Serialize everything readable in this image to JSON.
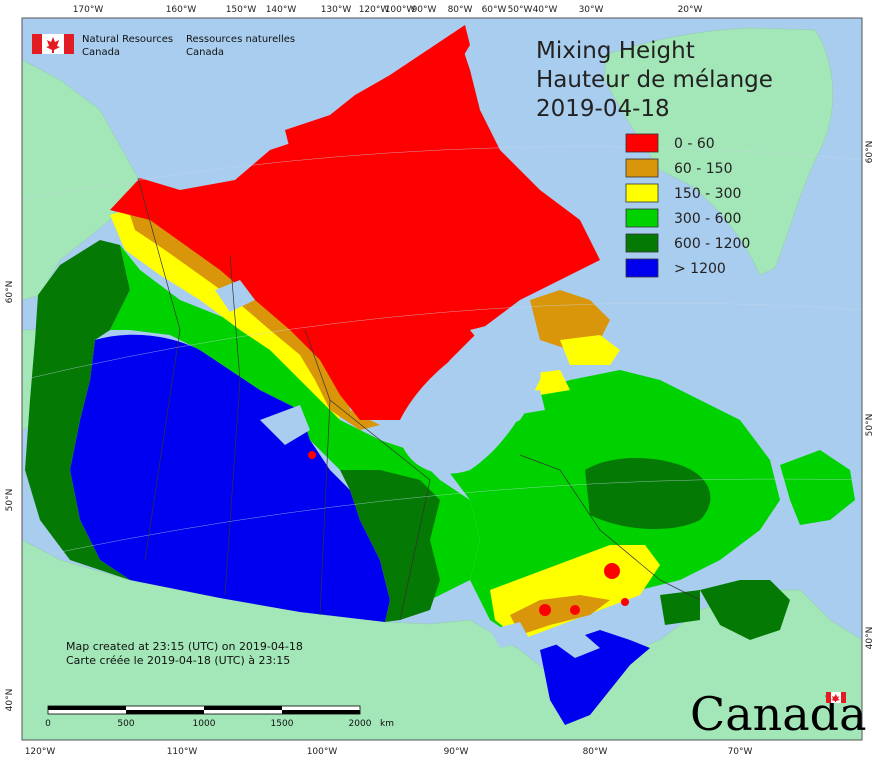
{
  "title": {
    "line1": "Mixing Height",
    "line2": "Hauteur de mélange",
    "date": "2019-04-18"
  },
  "agency": {
    "en_line1": "Natural Resources",
    "en_line2": "Canada",
    "fr_line1": "Ressources naturelles",
    "fr_line2": "Canada"
  },
  "legend": [
    {
      "label": "0 - 60",
      "color": "#ff0000"
    },
    {
      "label": "60 - 150",
      "color": "#d9960a"
    },
    {
      "label": "150 - 300",
      "color": "#ffff00"
    },
    {
      "label": "300 - 600",
      "color": "#00d200"
    },
    {
      "label": "600 - 1200",
      "color": "#047a04"
    },
    {
      "label": "> 1200",
      "color": "#0000f0"
    }
  ],
  "top_ticks": [
    "170°W",
    "160°W",
    "150°W",
    "140°W",
    "130°W",
    "120°W",
    "100°W",
    "90°W",
    "80°W",
    "60°W",
    "50°W",
    "40°W",
    "30°W",
    "20°W"
  ],
  "bottom_ticks": [
    "120°W",
    "110°W",
    "100°W",
    "90°W",
    "80°W",
    "70°W"
  ],
  "left_ticks": [
    "60°N",
    "50°N",
    "40°N"
  ],
  "right_ticks": [
    "60°N",
    "50°N",
    "40°N"
  ],
  "notes": {
    "line1": "Map created at 23:15 (UTC) on 2019-04-18",
    "line2": "Carte créée le 2019-04-18 (UTC) à 23:15"
  },
  "scale_bar": {
    "labels": [
      "0",
      "500",
      "1000",
      "1500",
      "2000"
    ],
    "unit": "km"
  },
  "wordmark": "Canada",
  "colors": {
    "ocean": "#a9cdee",
    "foreign_land": "#a3e6b8",
    "lakes": "#a9cdee"
  }
}
